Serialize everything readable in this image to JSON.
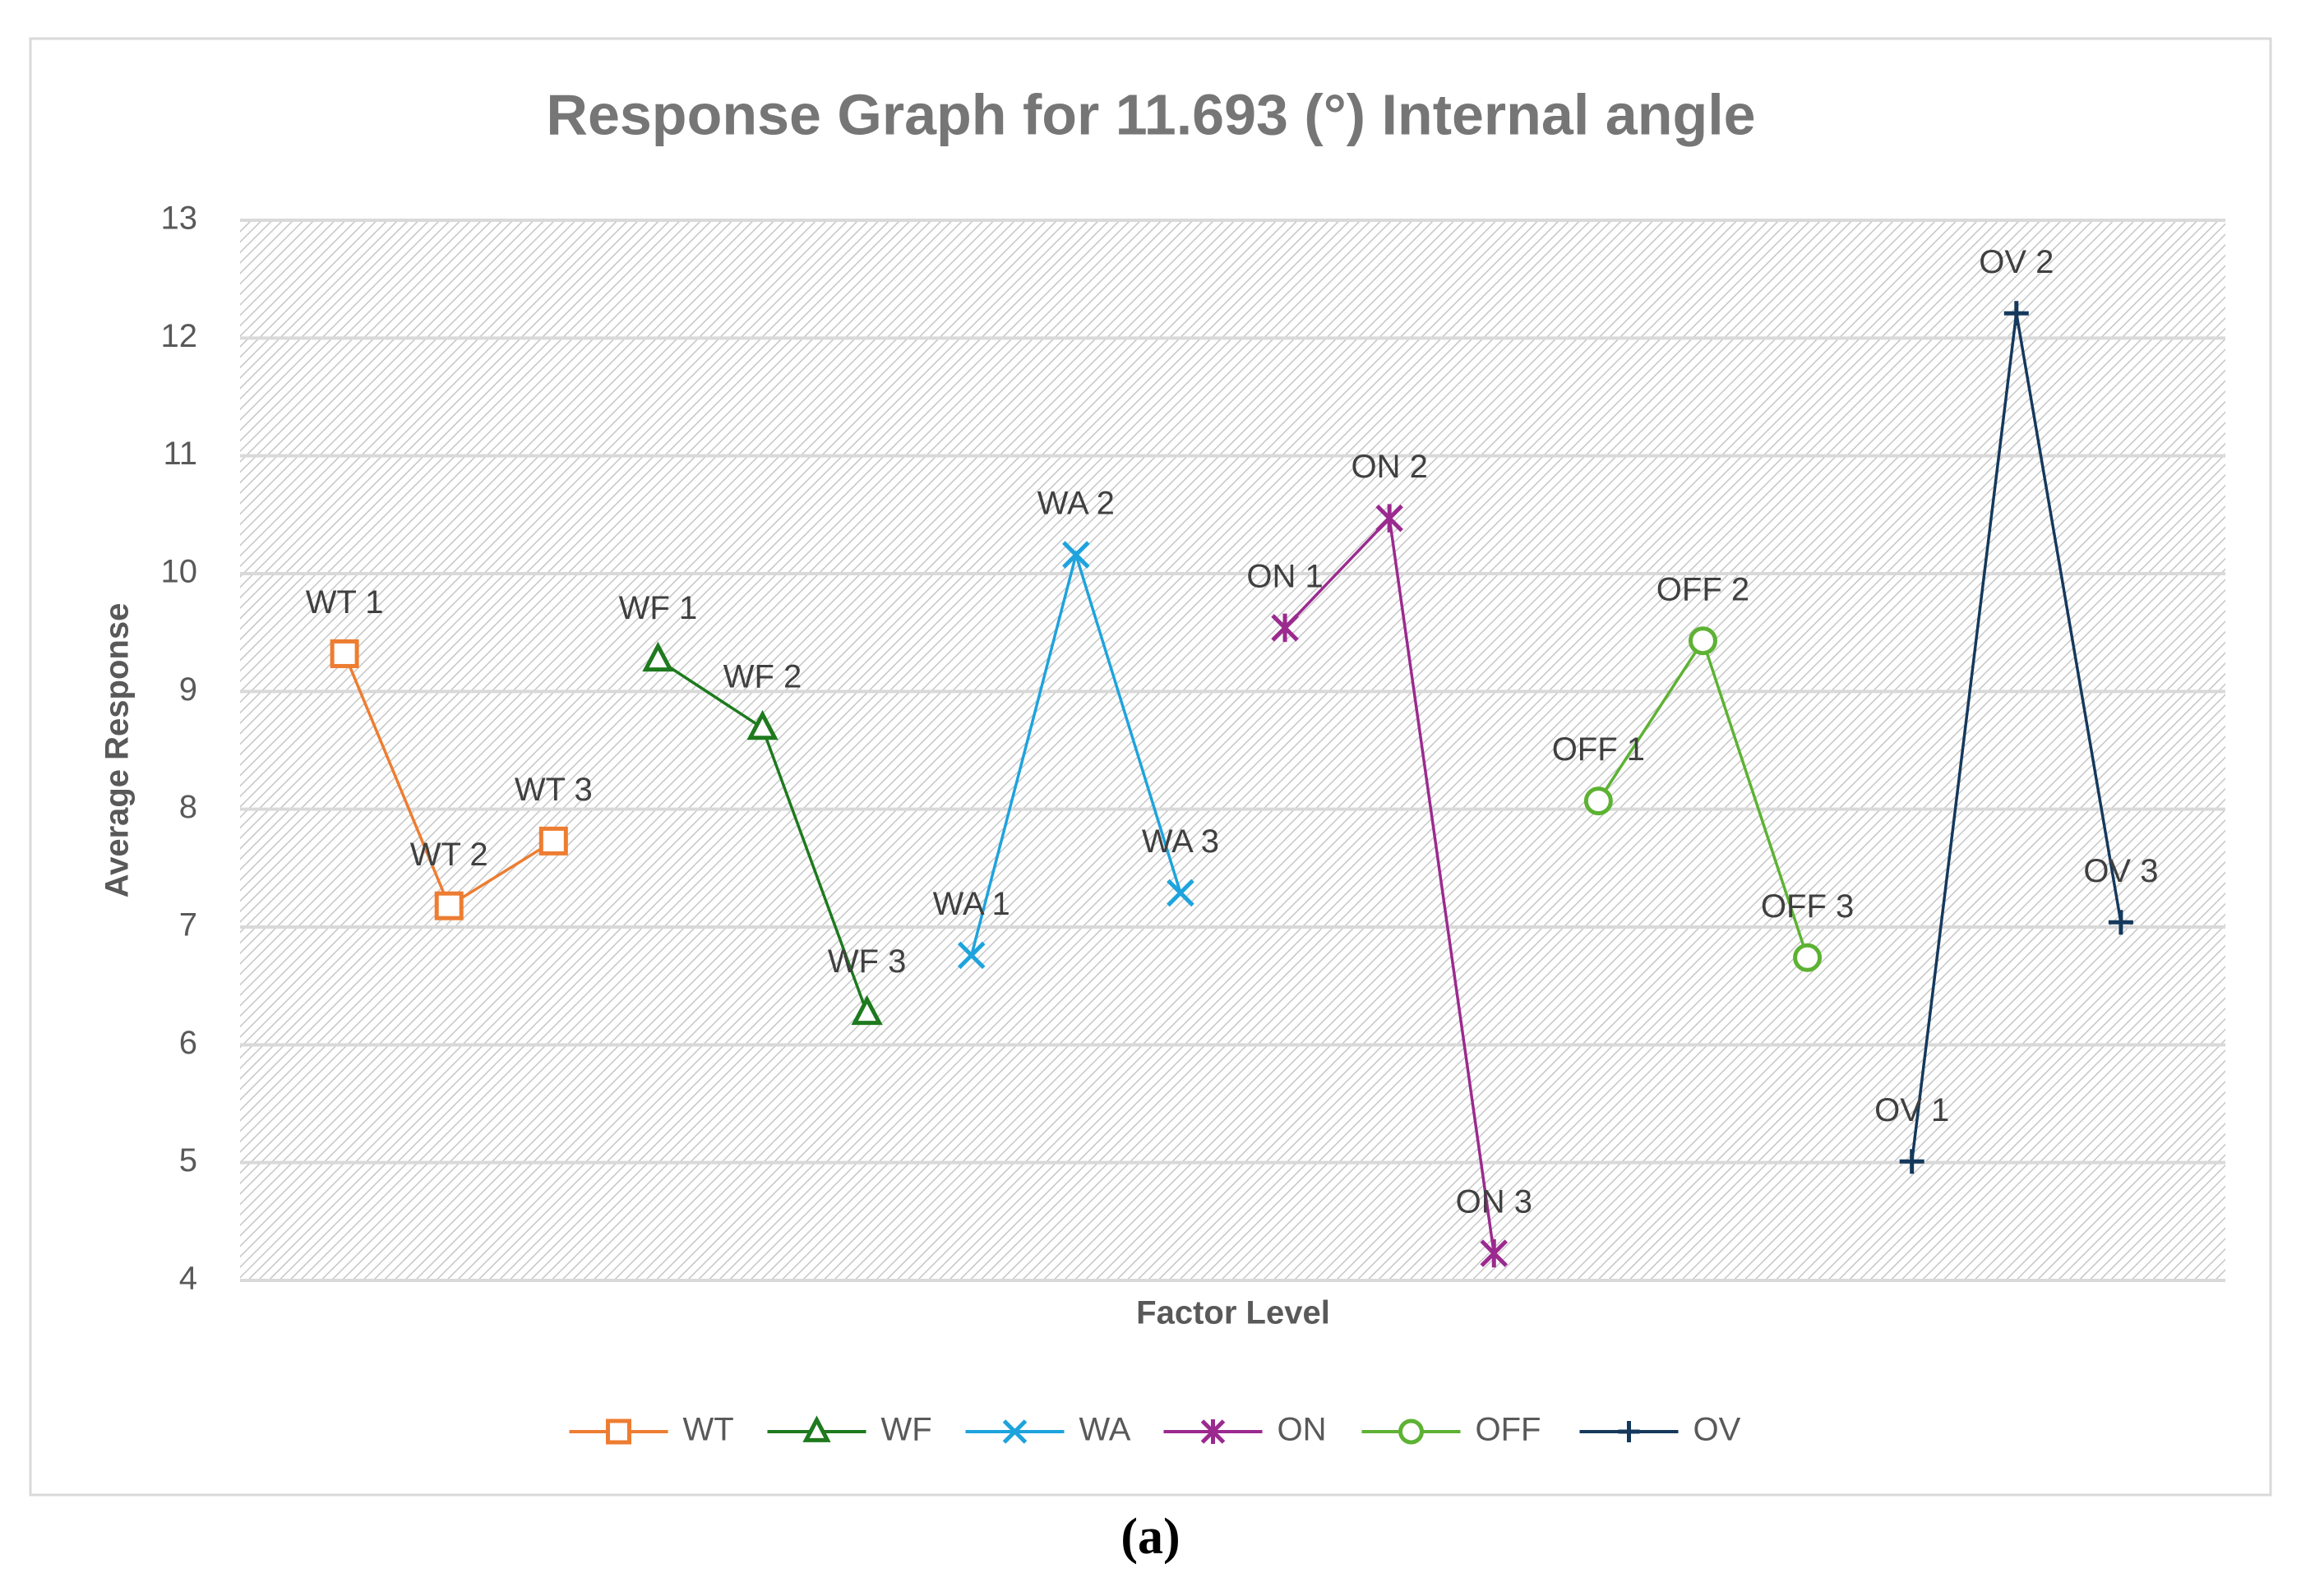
{
  "chart_data": {
    "type": "line",
    "title": "Response Graph for 11.693 (°) Internal angle",
    "xlabel": "Factor Level",
    "ylabel": "Average Response",
    "ylim": [
      4,
      13
    ],
    "yticks": [
      "4",
      "5",
      "6",
      "7",
      "8",
      "9",
      "10",
      "11",
      "12",
      "13"
    ],
    "legend_position": "bottom",
    "grid": true,
    "series": [
      {
        "name": "WT",
        "color": "#ED7D31",
        "marker": "square",
        "labels": [
          "WT 1",
          "WT 2",
          "WT 3"
        ],
        "x": [
          1,
          2,
          3
        ],
        "values": [
          9.32,
          7.18,
          7.73
        ]
      },
      {
        "name": "WF",
        "color": "#1E7A1E",
        "marker": "triangle",
        "labels": [
          "WF 1",
          "WF 2",
          "WF 3"
        ],
        "x": [
          4,
          5,
          6
        ],
        "values": [
          9.27,
          8.69,
          6.27
        ]
      },
      {
        "name": "WA",
        "color": "#1EA3DD",
        "marker": "x",
        "labels": [
          "WA 1",
          "WA 2",
          "WA 3"
        ],
        "x": [
          7,
          8,
          9
        ],
        "values": [
          6.76,
          10.16,
          7.29
        ]
      },
      {
        "name": "ON",
        "color": "#9B2A8F",
        "marker": "star",
        "labels": [
          "ON 1",
          "ON 2",
          "ON 3"
        ],
        "x": [
          10,
          11,
          12
        ],
        "values": [
          9.54,
          10.47,
          4.23
        ]
      },
      {
        "name": "OFF",
        "color": "#5DB233",
        "marker": "circle",
        "labels": [
          "OFF 1",
          "OFF 2",
          "OFF 3"
        ],
        "x": [
          13,
          14,
          15
        ],
        "values": [
          8.07,
          9.43,
          6.74
        ]
      },
      {
        "name": "OV",
        "color": "#15395C",
        "marker": "plus",
        "labels": [
          "OV 1",
          "OV 2",
          "OV 3"
        ],
        "x": [
          16,
          17,
          18
        ],
        "values": [
          5.01,
          12.21,
          7.04
        ]
      }
    ]
  },
  "caption": "(a)"
}
